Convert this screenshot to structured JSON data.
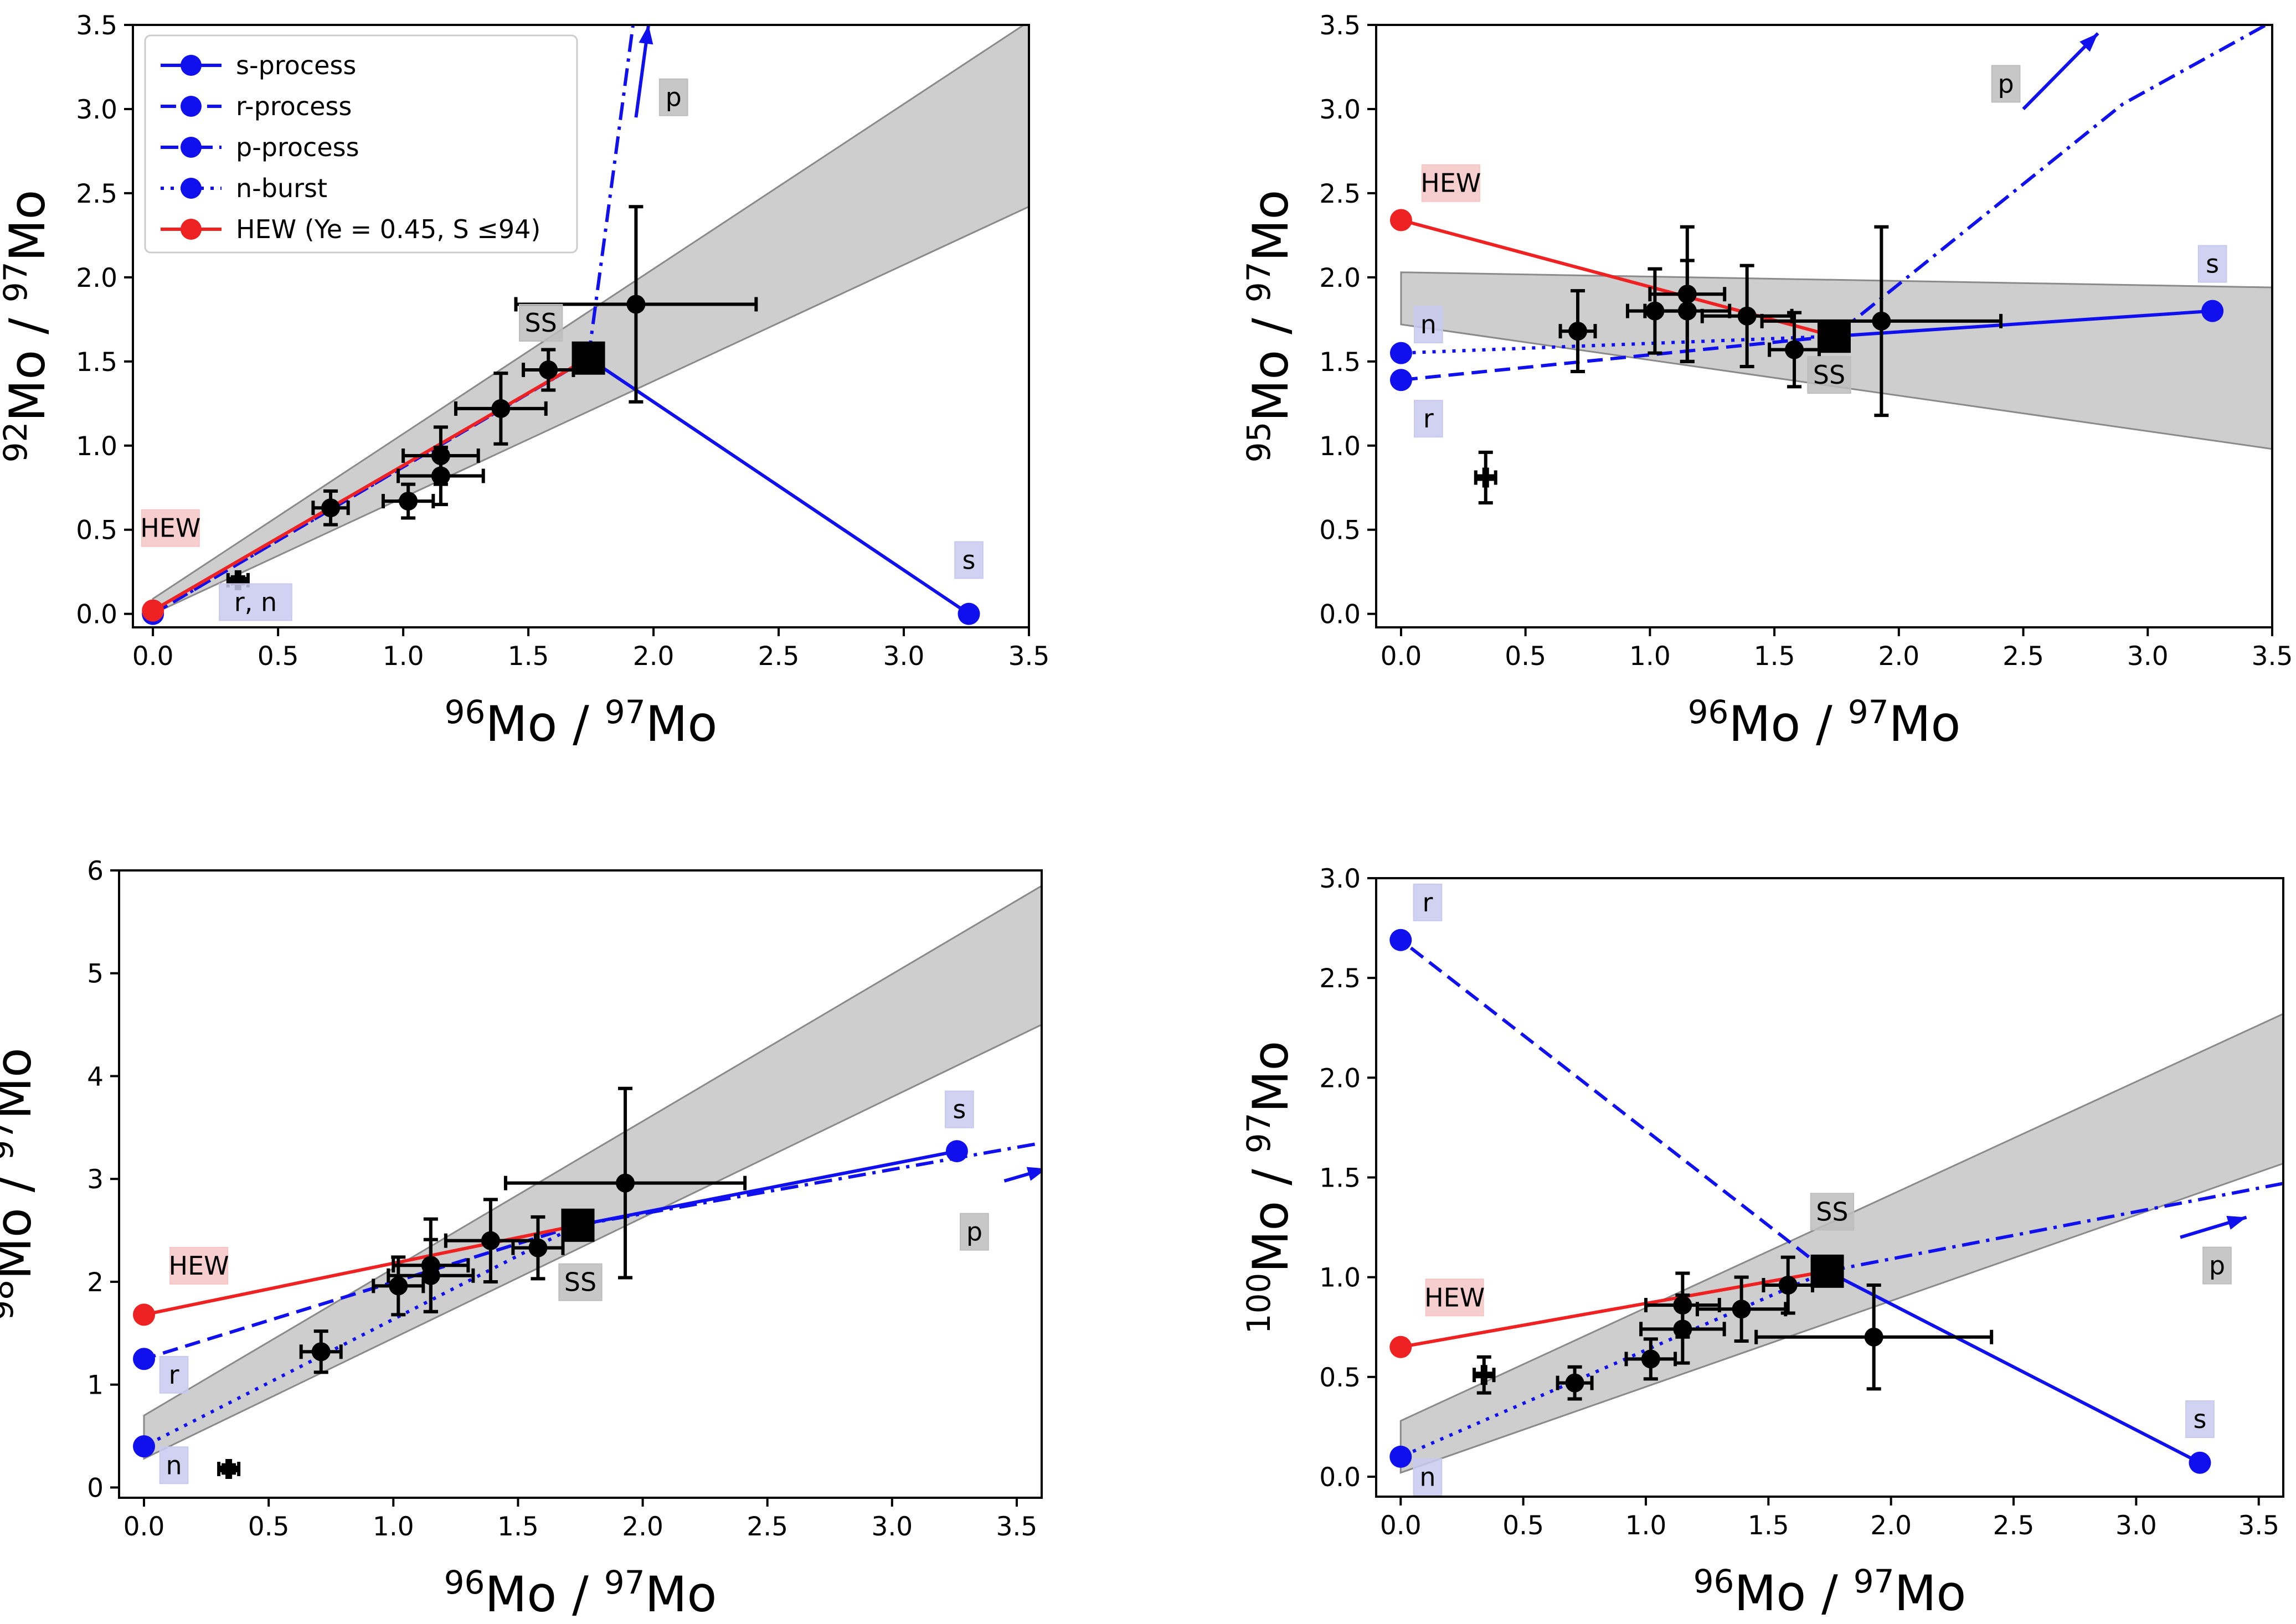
{
  "colors": {
    "blue": "#1010ee",
    "red": "#ee2222",
    "black": "#000000",
    "band": "#a6a6a6",
    "label_blue_bg": "#c9c9ee",
    "label_red_bg": "#f6c6c6",
    "label_gray_bg": "#bdbdbd"
  },
  "legend": {
    "items": [
      {
        "label": "s-process",
        "style": "solid",
        "color": "#1010ee"
      },
      {
        "label": "r-process",
        "style": "dashed",
        "color": "#1010ee"
      },
      {
        "label": "p-process",
        "style": "dashdot",
        "color": "#1010ee"
      },
      {
        "label": "n-burst",
        "style": "dotted",
        "color": "#1010ee"
      },
      {
        "label": "HEW (Ye = 0.45, S ≤94)",
        "style": "solid",
        "color": "#ee2222"
      }
    ]
  },
  "chart_data": [
    {
      "type": "scatter",
      "panel": "top-left",
      "xlabel": {
        "pre1": "96",
        "mid": "Mo / ",
        "pre2": "97",
        "post": "Mo"
      },
      "ylabel": {
        "pre1": "92",
        "mid": "Mo / ",
        "pre2": "97",
        "post": "Mo"
      },
      "xlim": [
        -0.08,
        3.5
      ],
      "ylim": [
        -0.08,
        3.5
      ],
      "xticks": [
        "0.0",
        "0.5",
        "1.0",
        "1.5",
        "2.0",
        "2.5",
        "3.0",
        "3.5"
      ],
      "yticks": [
        "0.0",
        "0.5",
        "1.0",
        "1.5",
        "2.0",
        "2.5",
        "3.0",
        "3.5"
      ],
      "band": {
        "upper": [
          [
            0,
            0.09
          ],
          [
            3.5,
            3.52
          ]
        ],
        "lower": [
          [
            0,
            0.0
          ],
          [
            3.5,
            2.42
          ]
        ]
      },
      "solar_system": [
        1.74,
        1.52
      ],
      "mixing_lines": [
        {
          "name": "s-process",
          "style": "solid",
          "color": "#1010ee",
          "points": [
            [
              1.74,
              1.52
            ],
            [
              3.26,
              0.0
            ]
          ],
          "endpoint_marker": true
        },
        {
          "name": "r-process",
          "style": "dashed",
          "color": "#1010ee",
          "points": [
            [
              1.74,
              1.52
            ],
            [
              0.0,
              0.0
            ]
          ],
          "endpoint_marker": true
        },
        {
          "name": "n-burst",
          "style": "dotted",
          "color": "#1010ee",
          "points": [
            [
              1.74,
              1.52
            ],
            [
              0.0,
              0.0
            ]
          ],
          "endpoint_marker": false
        },
        {
          "name": "p-process",
          "style": "dashdot",
          "color": "#1010ee",
          "points": [
            [
              1.74,
              1.52
            ],
            [
              1.92,
              3.52
            ]
          ],
          "endpoint_marker": false
        },
        {
          "name": "HEW",
          "style": "solid",
          "color": "#ee2222",
          "points": [
            [
              1.74,
              1.52
            ],
            [
              0.0,
              0.02
            ]
          ],
          "endpoint_marker": true
        }
      ],
      "arrows": [
        {
          "from": [
            1.93,
            2.95
          ],
          "to": [
            1.98,
            3.5
          ]
        }
      ],
      "data_points": [
        {
          "x": 0.34,
          "y": 0.2,
          "xerr": 0.04,
          "yerr": 0.02,
          "marker": "plus"
        },
        {
          "x": 0.71,
          "y": 0.63,
          "xerr": 0.07,
          "yerr": 0.1
        },
        {
          "x": 1.02,
          "y": 0.67,
          "xerr": 0.1,
          "yerr": 0.1
        },
        {
          "x": 1.15,
          "y": 0.94,
          "xerr": 0.15,
          "yerr": 0.17
        },
        {
          "x": 1.15,
          "y": 0.82,
          "xerr": 0.17,
          "yerr": 0.17
        },
        {
          "x": 1.39,
          "y": 1.22,
          "xerr": 0.18,
          "yerr": 0.21
        },
        {
          "x": 1.58,
          "y": 1.45,
          "xerr": 0.1,
          "yerr": 0.12
        },
        {
          "x": 1.93,
          "y": 1.84,
          "xerr": 0.48,
          "yerr": 0.58
        }
      ],
      "annotations": [
        {
          "text": "SS",
          "x": 1.55,
          "y": 1.72,
          "bg": "gray"
        },
        {
          "text": "HEW",
          "x": 0.07,
          "y": 0.5,
          "bg": "red"
        },
        {
          "text": "r, n",
          "x": 0.41,
          "y": 0.06,
          "bg": "blue"
        },
        {
          "text": "s",
          "x": 3.26,
          "y": 0.31,
          "bg": "blue"
        },
        {
          "text": "p",
          "x": 2.08,
          "y": 3.06,
          "bg": "gray"
        }
      ],
      "legend_position": "upper-left"
    },
    {
      "type": "scatter",
      "panel": "top-right",
      "xlabel": {
        "pre1": "96",
        "mid": "Mo / ",
        "pre2": "97",
        "post": "Mo"
      },
      "ylabel": {
        "pre1": "95",
        "mid": "Mo / ",
        "pre2": "97",
        "post": "Mo"
      },
      "xlim": [
        -0.1,
        3.5
      ],
      "ylim": [
        -0.08,
        3.5
      ],
      "xticks": [
        "0.0",
        "0.5",
        "1.0",
        "1.5",
        "2.0",
        "2.5",
        "3.0",
        "3.5"
      ],
      "yticks": [
        "0.0",
        "0.5",
        "1.0",
        "1.5",
        "2.0",
        "2.5",
        "3.0",
        "3.5"
      ],
      "band": {
        "upper": [
          [
            0,
            2.03
          ],
          [
            3.5,
            1.94
          ]
        ],
        "lower": [
          [
            0,
            1.72
          ],
          [
            3.5,
            0.98
          ]
        ]
      },
      "solar_system": [
        1.74,
        1.65
      ],
      "mixing_lines": [
        {
          "name": "s-process",
          "style": "solid",
          "color": "#1010ee",
          "points": [
            [
              1.74,
              1.65
            ],
            [
              3.26,
              1.8
            ]
          ],
          "endpoint_marker": true
        },
        {
          "name": "r-process",
          "style": "dashed",
          "color": "#1010ee",
          "points": [
            [
              1.74,
              1.65
            ],
            [
              0.0,
              1.39
            ]
          ],
          "endpoint_marker": true
        },
        {
          "name": "n-burst",
          "style": "dotted",
          "color": "#1010ee",
          "points": [
            [
              1.74,
              1.65
            ],
            [
              0.0,
              1.55
            ]
          ],
          "endpoint_marker": true
        },
        {
          "name": "p-process",
          "style": "dashdot",
          "color": "#1010ee",
          "points": [
            [
              1.74,
              1.65
            ],
            [
              2.9,
              3.03
            ],
            [
              3.5,
              3.52
            ]
          ],
          "endpoint_marker": false
        },
        {
          "name": "HEW",
          "style": "solid",
          "color": "#ee2222",
          "points": [
            [
              1.74,
              1.65
            ],
            [
              0.0,
              2.34
            ]
          ],
          "endpoint_marker": true
        }
      ],
      "arrows": [
        {
          "from": [
            2.5,
            3.0
          ],
          "to": [
            2.8,
            3.45
          ]
        }
      ],
      "data_points": [
        {
          "x": 0.34,
          "y": 0.81,
          "xerr": 0.04,
          "yerr": 0.15,
          "marker": "plus"
        },
        {
          "x": 0.71,
          "y": 1.68,
          "xerr": 0.07,
          "yerr": 0.24
        },
        {
          "x": 1.02,
          "y": 1.8,
          "xerr": 0.11,
          "yerr": 0.25
        },
        {
          "x": 1.15,
          "y": 1.9,
          "xerr": 0.15,
          "yerr": 0.4
        },
        {
          "x": 1.15,
          "y": 1.8,
          "xerr": 0.17,
          "yerr": 0.3
        },
        {
          "x": 1.39,
          "y": 1.77,
          "xerr": 0.18,
          "yerr": 0.3
        },
        {
          "x": 1.58,
          "y": 1.57,
          "xerr": 0.1,
          "yerr": 0.22
        },
        {
          "x": 1.93,
          "y": 1.74,
          "xerr": 0.48,
          "yerr": 0.56
        }
      ],
      "annotations": [
        {
          "text": "HEW",
          "x": 0.2,
          "y": 2.55,
          "bg": "red"
        },
        {
          "text": "n",
          "x": 0.11,
          "y": 1.71,
          "bg": "blue"
        },
        {
          "text": "r",
          "x": 0.11,
          "y": 1.15,
          "bg": "blue"
        },
        {
          "text": "SS",
          "x": 1.72,
          "y": 1.41,
          "bg": "gray"
        },
        {
          "text": "s",
          "x": 3.26,
          "y": 2.07,
          "bg": "blue"
        },
        {
          "text": "p",
          "x": 2.43,
          "y": 3.14,
          "bg": "gray"
        }
      ]
    },
    {
      "type": "scatter",
      "panel": "bottom-left",
      "xlabel": {
        "pre1": "96",
        "mid": "Mo / ",
        "pre2": "97",
        "post": "Mo"
      },
      "ylabel": {
        "pre1": "98",
        "mid": "Mo / ",
        "pre2": "97",
        "post": "Mo"
      },
      "xlim": [
        -0.1,
        3.6
      ],
      "ylim": [
        -0.1,
        6.0
      ],
      "xticks": [
        "0.0",
        "0.5",
        "1.0",
        "1.5",
        "2.0",
        "2.5",
        "3.0",
        "3.5"
      ],
      "yticks": [
        "0",
        "1",
        "2",
        "3",
        "4",
        "5",
        "6"
      ],
      "band": {
        "upper": [
          [
            0,
            0.7
          ],
          [
            3.6,
            5.85
          ]
        ],
        "lower": [
          [
            0,
            0.28
          ],
          [
            3.6,
            4.5
          ]
        ]
      },
      "solar_system": [
        1.74,
        2.55
      ],
      "mixing_lines": [
        {
          "name": "s-process",
          "style": "solid",
          "color": "#1010ee",
          "points": [
            [
              1.74,
              2.55
            ],
            [
              3.26,
              3.27
            ]
          ],
          "endpoint_marker": true
        },
        {
          "name": "r-process",
          "style": "dashed",
          "color": "#1010ee",
          "points": [
            [
              1.74,
              2.55
            ],
            [
              0.0,
              1.25
            ]
          ],
          "endpoint_marker": true
        },
        {
          "name": "n-burst",
          "style": "dotted",
          "color": "#1010ee",
          "points": [
            [
              1.74,
              2.55
            ],
            [
              0.0,
              0.4
            ]
          ],
          "endpoint_marker": true
        },
        {
          "name": "p-process",
          "style": "dashdot",
          "color": "#1010ee",
          "points": [
            [
              1.74,
              2.55
            ],
            [
              3.6,
              3.35
            ]
          ],
          "endpoint_marker": false
        },
        {
          "name": "HEW",
          "style": "solid",
          "color": "#ee2222",
          "points": [
            [
              1.74,
              2.55
            ],
            [
              0.0,
              1.68
            ]
          ],
          "endpoint_marker": true
        }
      ],
      "arrows": [
        {
          "from": [
            3.45,
            2.98
          ],
          "to": [
            3.62,
            3.1
          ]
        }
      ],
      "data_points": [
        {
          "x": 0.34,
          "y": 0.18,
          "xerr": 0.04,
          "yerr": 0.04,
          "marker": "plus"
        },
        {
          "x": 0.71,
          "y": 1.32,
          "xerr": 0.08,
          "yerr": 0.2
        },
        {
          "x": 1.02,
          "y": 1.96,
          "xerr": 0.1,
          "yerr": 0.28
        },
        {
          "x": 1.15,
          "y": 2.16,
          "xerr": 0.15,
          "yerr": 0.45
        },
        {
          "x": 1.15,
          "y": 2.06,
          "xerr": 0.17,
          "yerr": 0.35
        },
        {
          "x": 1.39,
          "y": 2.4,
          "xerr": 0.18,
          "yerr": 0.4
        },
        {
          "x": 1.58,
          "y": 2.33,
          "xerr": 0.1,
          "yerr": 0.3
        },
        {
          "x": 1.93,
          "y": 2.96,
          "xerr": 0.48,
          "yerr": 0.92
        }
      ],
      "annotations": [
        {
          "text": "HEW",
          "x": 0.22,
          "y": 2.14,
          "bg": "red"
        },
        {
          "text": "r",
          "x": 0.12,
          "y": 1.08,
          "bg": "blue"
        },
        {
          "text": "n",
          "x": 0.12,
          "y": 0.2,
          "bg": "blue"
        },
        {
          "text": "SS",
          "x": 1.75,
          "y": 1.98,
          "bg": "gray"
        },
        {
          "text": "s",
          "x": 3.27,
          "y": 3.66,
          "bg": "blue"
        },
        {
          "text": "p",
          "x": 3.33,
          "y": 2.47,
          "bg": "gray"
        }
      ]
    },
    {
      "type": "scatter",
      "panel": "bottom-right",
      "xlabel": {
        "pre1": "96",
        "mid": "Mo / ",
        "pre2": "97",
        "post": "Mo"
      },
      "ylabel": {
        "pre1": "100",
        "mid": "Mo / ",
        "pre2": "97",
        "post": "Mo"
      },
      "xlim": [
        -0.1,
        3.6
      ],
      "ylim": [
        -0.1,
        3.0
      ],
      "xticks": [
        "0.0",
        "0.5",
        "1.0",
        "1.5",
        "2.0",
        "2.5",
        "3.0",
        "3.5"
      ],
      "yticks": [
        "0.0",
        "0.5",
        "1.0",
        "1.5",
        "2.0",
        "2.5",
        "3.0"
      ],
      "band": {
        "upper": [
          [
            0,
            0.28
          ],
          [
            3.6,
            2.32
          ]
        ],
        "lower": [
          [
            0,
            0.02
          ],
          [
            3.6,
            1.57
          ]
        ]
      },
      "solar_system": [
        1.74,
        1.03
      ],
      "mixing_lines": [
        {
          "name": "s-process",
          "style": "solid",
          "color": "#1010ee",
          "points": [
            [
              1.74,
              1.03
            ],
            [
              3.26,
              0.07
            ]
          ],
          "endpoint_marker": true
        },
        {
          "name": "r-process",
          "style": "dashed",
          "color": "#1010ee",
          "points": [
            [
              1.74,
              1.03
            ],
            [
              0.0,
              2.69
            ]
          ],
          "endpoint_marker": true
        },
        {
          "name": "n-burst",
          "style": "dotted",
          "color": "#1010ee",
          "points": [
            [
              1.74,
              1.03
            ],
            [
              0.0,
              0.1
            ]
          ],
          "endpoint_marker": true
        },
        {
          "name": "p-process",
          "style": "dashdot",
          "color": "#1010ee",
          "points": [
            [
              1.74,
              1.03
            ],
            [
              3.6,
              1.47
            ]
          ],
          "endpoint_marker": false
        },
        {
          "name": "HEW",
          "style": "solid",
          "color": "#ee2222",
          "points": [
            [
              1.74,
              1.03
            ],
            [
              0.0,
              0.65
            ]
          ],
          "endpoint_marker": true
        }
      ],
      "arrows": [
        {
          "from": [
            3.18,
            1.2
          ],
          "to": [
            3.45,
            1.3
          ]
        }
      ],
      "data_points": [
        {
          "x": 0.34,
          "y": 0.51,
          "xerr": 0.04,
          "yerr": 0.09,
          "marker": "plus"
        },
        {
          "x": 0.71,
          "y": 0.47,
          "xerr": 0.07,
          "yerr": 0.08
        },
        {
          "x": 1.02,
          "y": 0.59,
          "xerr": 0.1,
          "yerr": 0.1
        },
        {
          "x": 1.15,
          "y": 0.86,
          "xerr": 0.15,
          "yerr": 0.16
        },
        {
          "x": 1.15,
          "y": 0.74,
          "xerr": 0.17,
          "yerr": 0.17
        },
        {
          "x": 1.39,
          "y": 0.84,
          "xerr": 0.18,
          "yerr": 0.16
        },
        {
          "x": 1.58,
          "y": 0.96,
          "xerr": 0.1,
          "yerr": 0.14
        },
        {
          "x": 1.93,
          "y": 0.7,
          "xerr": 0.48,
          "yerr": 0.26
        }
      ],
      "annotations": [
        {
          "text": "r",
          "x": 0.11,
          "y": 2.87,
          "bg": "blue"
        },
        {
          "text": "HEW",
          "x": 0.22,
          "y": 0.89,
          "bg": "red"
        },
        {
          "text": "n",
          "x": 0.11,
          "y": -0.01,
          "bg": "blue"
        },
        {
          "text": "SS",
          "x": 1.76,
          "y": 1.32,
          "bg": "gray"
        },
        {
          "text": "s",
          "x": 3.26,
          "y": 0.28,
          "bg": "blue"
        },
        {
          "text": "p",
          "x": 3.33,
          "y": 1.05,
          "bg": "gray"
        }
      ]
    }
  ]
}
